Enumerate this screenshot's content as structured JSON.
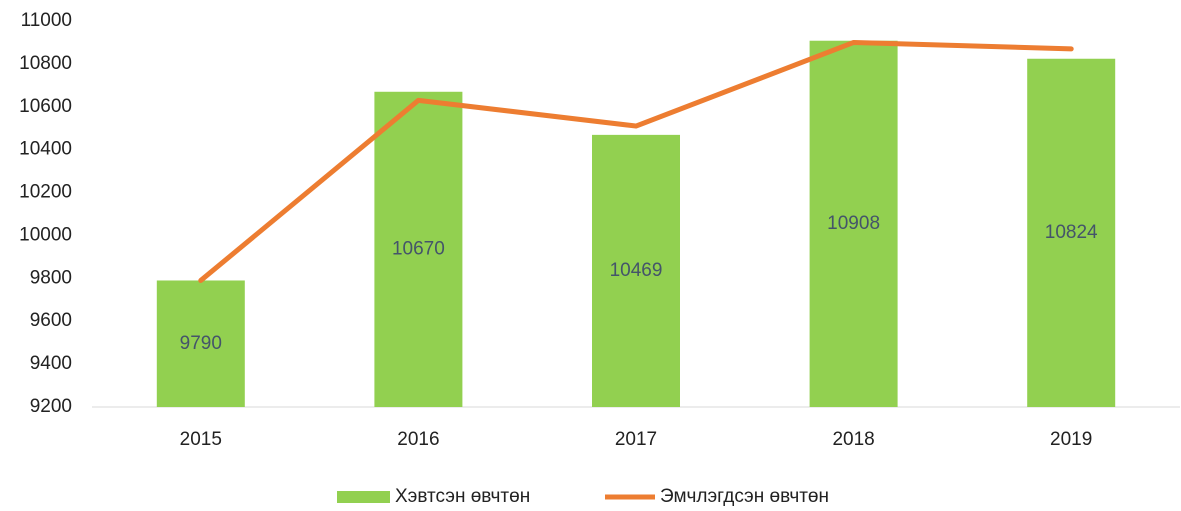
{
  "chart_data": {
    "type": "bar",
    "categories": [
      "2015",
      "2016",
      "2017",
      "2018",
      "2019"
    ],
    "series": [
      {
        "name": "Хэвтсэн өвчтөн",
        "type": "bar",
        "color": "#92d050",
        "values": [
          9790,
          10670,
          10469,
          10908,
          10824
        ],
        "show_values": true
      },
      {
        "name": "Эмчлэгдсэн өвчтөн",
        "type": "line",
        "color": "#ed7d31",
        "values": [
          9790,
          10630,
          10510,
          10900,
          10870
        ]
      }
    ],
    "ylim": [
      9200,
      11000
    ],
    "yticks": [
      9200,
      9400,
      9600,
      9800,
      10000,
      10200,
      10400,
      10600,
      10800,
      11000
    ],
    "grid": false,
    "legend": "bottom"
  }
}
